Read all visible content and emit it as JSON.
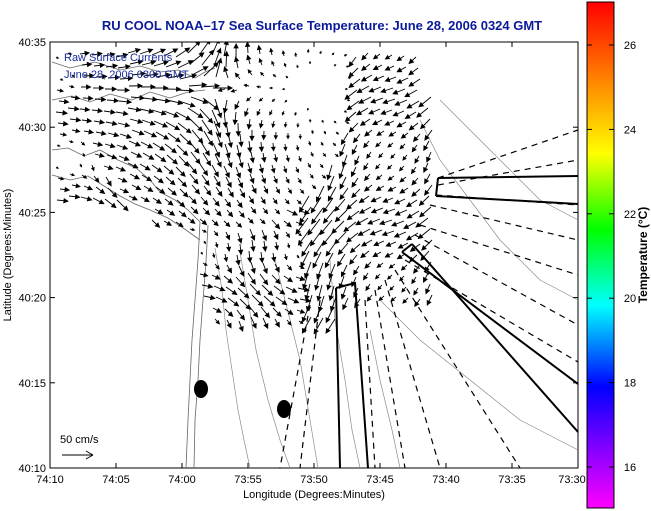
{
  "title": "RU COOL   NOAA–17  Sea Surface Temperature:  June 28, 2006 0324 GMT",
  "annotation": {
    "line1": "Raw Surface Currents",
    "line2": "June 28, 2006 0300 GMT"
  },
  "scale": {
    "label": "50 cm/s"
  },
  "axes": {
    "xlabel": "Longitude (Degrees:Minutes)",
    "ylabel": "Latitude (Degrees:Minutes)",
    "xticks": [
      "74:10",
      "74:05",
      "74:00",
      "73:55",
      "73:50",
      "73:45",
      "73:40",
      "73:35",
      "73:30"
    ],
    "yticks": [
      "40:35",
      "40:30",
      "40:25",
      "40:20",
      "40:15",
      "40:10"
    ]
  },
  "colorbar": {
    "label": "Temperature (°C)",
    "ticks": [
      "26",
      "24",
      "22",
      "20",
      "18",
      "16"
    ]
  },
  "colors": {
    "title": "#0a1a9a",
    "annotation": "#1a2a9a",
    "vectors": "#000000",
    "contours": "#888888"
  },
  "markers": [
    {
      "name": "buoy-marker-1",
      "lon": "74:00.7",
      "lat": "40:14.7"
    },
    {
      "name": "buoy-marker-2",
      "lon": "73:56.2",
      "lat": "40:13.5"
    }
  ]
}
